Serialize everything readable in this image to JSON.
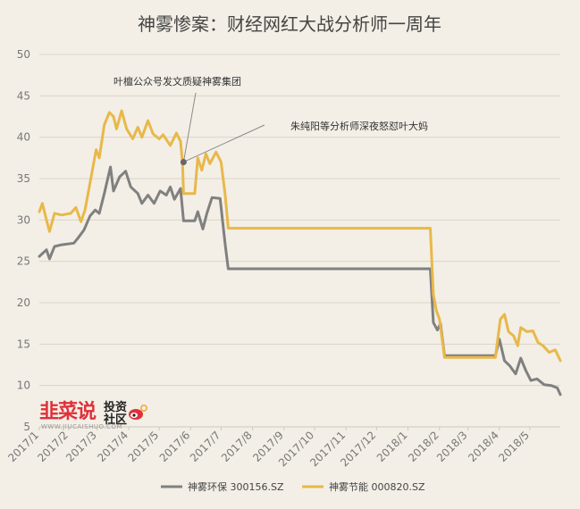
{
  "chart_data": {
    "type": "line",
    "title": "神雾惨案：财经网红大战分析师一周年",
    "xlabel": "",
    "ylabel": "",
    "ylim": [
      5,
      50
    ],
    "yticks": [
      5,
      10,
      15,
      20,
      25,
      30,
      35,
      40,
      45,
      50
    ],
    "xlim": [
      "2017-01-03",
      "2018-05-31"
    ],
    "xticks": [
      "2017/1",
      "2017/2",
      "2017/3",
      "2017/4",
      "2017/5",
      "2017/6",
      "2017/7",
      "2017/8",
      "2017/9",
      "2017/10",
      "2017/11",
      "2017/12",
      "2018/1",
      "2018/2",
      "2018/3",
      "2018/4",
      "2018/5"
    ],
    "xtick_dates": [
      "2017-01-03",
      "2017-02-01",
      "2017-03-01",
      "2017-04-01",
      "2017-05-01",
      "2017-06-01",
      "2017-07-01",
      "2017-08-01",
      "2017-09-01",
      "2017-10-01",
      "2017-11-01",
      "2017-12-01",
      "2018-01-01",
      "2018-02-01",
      "2018-03-01",
      "2018-04-01",
      "2018-05-01"
    ],
    "grid": "horizontal",
    "legend_position": "bottom",
    "series": [
      {
        "name": "神雾环保 300156.SZ",
        "color": "#808080",
        "points": [
          [
            "2017-01-03",
            25.6
          ],
          [
            "2017-01-10",
            26.4
          ],
          [
            "2017-01-13",
            25.3
          ],
          [
            "2017-01-18",
            26.8
          ],
          [
            "2017-01-25",
            27.0
          ],
          [
            "2017-02-06",
            27.2
          ],
          [
            "2017-02-10",
            27.8
          ],
          [
            "2017-02-16",
            28.8
          ],
          [
            "2017-02-22",
            30.5
          ],
          [
            "2017-02-27",
            31.2
          ],
          [
            "2017-03-03",
            30.8
          ],
          [
            "2017-03-08",
            33.2
          ],
          [
            "2017-03-14",
            36.4
          ],
          [
            "2017-03-17",
            33.5
          ],
          [
            "2017-03-23",
            35.2
          ],
          [
            "2017-03-29",
            35.9
          ],
          [
            "2017-04-03",
            34.0
          ],
          [
            "2017-04-10",
            33.2
          ],
          [
            "2017-04-14",
            32.0
          ],
          [
            "2017-04-20",
            33.0
          ],
          [
            "2017-04-26",
            32.0
          ],
          [
            "2017-05-02",
            33.5
          ],
          [
            "2017-05-08",
            33.0
          ],
          [
            "2017-05-12",
            34.0
          ],
          [
            "2017-05-16",
            32.5
          ],
          [
            "2017-05-22",
            33.8
          ],
          [
            "2017-05-25",
            29.9
          ],
          [
            "2017-06-05",
            29.9
          ],
          [
            "2017-06-08",
            31.0
          ],
          [
            "2017-06-13",
            28.9
          ],
          [
            "2017-06-17",
            30.8
          ],
          [
            "2017-06-22",
            32.7
          ],
          [
            "2017-06-30",
            32.6
          ],
          [
            "2017-07-05",
            27.0
          ],
          [
            "2017-07-08",
            24.1
          ],
          [
            "2018-01-23",
            24.1
          ],
          [
            "2018-01-26",
            17.6
          ],
          [
            "2018-01-30",
            16.7
          ],
          [
            "2018-02-02",
            17.5
          ],
          [
            "2018-02-06",
            13.6
          ],
          [
            "2018-03-28",
            13.6
          ],
          [
            "2018-04-01",
            15.6
          ],
          [
            "2018-04-06",
            13.0
          ],
          [
            "2018-04-11",
            12.4
          ],
          [
            "2018-04-17",
            11.4
          ],
          [
            "2018-04-22",
            13.3
          ],
          [
            "2018-04-27",
            11.8
          ],
          [
            "2018-05-02",
            10.6
          ],
          [
            "2018-05-08",
            10.8
          ],
          [
            "2018-05-15",
            10.1
          ],
          [
            "2018-05-22",
            10.0
          ],
          [
            "2018-05-28",
            9.7
          ],
          [
            "2018-05-31",
            8.9
          ]
        ]
      },
      {
        "name": "神雾节能 000820.SZ",
        "color": "#e8b84a",
        "points": [
          [
            "2017-01-03",
            31.0
          ],
          [
            "2017-01-06",
            32.0
          ],
          [
            "2017-01-10",
            30.0
          ],
          [
            "2017-01-13",
            28.6
          ],
          [
            "2017-01-18",
            30.8
          ],
          [
            "2017-01-25",
            30.6
          ],
          [
            "2017-02-03",
            30.8
          ],
          [
            "2017-02-08",
            31.5
          ],
          [
            "2017-02-13",
            29.8
          ],
          [
            "2017-02-17",
            31.2
          ],
          [
            "2017-02-22",
            34.5
          ],
          [
            "2017-02-28",
            38.5
          ],
          [
            "2017-03-03",
            37.5
          ],
          [
            "2017-03-08",
            41.5
          ],
          [
            "2017-03-13",
            43.0
          ],
          [
            "2017-03-17",
            42.5
          ],
          [
            "2017-03-20",
            41.0
          ],
          [
            "2017-03-25",
            43.2
          ],
          [
            "2017-03-30",
            41.0
          ],
          [
            "2017-04-05",
            39.8
          ],
          [
            "2017-04-10",
            41.2
          ],
          [
            "2017-04-14",
            40.0
          ],
          [
            "2017-04-20",
            42.0
          ],
          [
            "2017-04-25",
            40.4
          ],
          [
            "2017-05-01",
            39.8
          ],
          [
            "2017-05-05",
            40.3
          ],
          [
            "2017-05-12",
            39.0
          ],
          [
            "2017-05-18",
            40.5
          ],
          [
            "2017-05-22",
            39.5
          ],
          [
            "2017-05-24",
            37.0
          ],
          [
            "2017-05-25",
            33.2
          ],
          [
            "2017-06-05",
            33.2
          ],
          [
            "2017-06-08",
            37.5
          ],
          [
            "2017-06-12",
            36.0
          ],
          [
            "2017-06-16",
            38.0
          ],
          [
            "2017-06-20",
            36.8
          ],
          [
            "2017-06-26",
            38.2
          ],
          [
            "2017-07-01",
            37.0
          ],
          [
            "2017-07-05",
            33.0
          ],
          [
            "2017-07-08",
            29.0
          ],
          [
            "2018-01-23",
            29.0
          ],
          [
            "2018-01-26",
            21.0
          ],
          [
            "2018-01-29",
            19.0
          ],
          [
            "2018-02-01",
            18.0
          ],
          [
            "2018-02-06",
            13.4
          ],
          [
            "2018-03-28",
            13.4
          ],
          [
            "2018-04-02",
            18.0
          ],
          [
            "2018-04-06",
            18.6
          ],
          [
            "2018-04-10",
            16.5
          ],
          [
            "2018-04-15",
            16.0
          ],
          [
            "2018-04-19",
            14.8
          ],
          [
            "2018-04-22",
            17.0
          ],
          [
            "2018-04-28",
            16.5
          ],
          [
            "2018-05-04",
            16.6
          ],
          [
            "2018-05-09",
            15.2
          ],
          [
            "2018-05-14",
            14.8
          ],
          [
            "2018-05-20",
            14.0
          ],
          [
            "2018-05-26",
            14.3
          ],
          [
            "2018-05-31",
            13.0
          ]
        ]
      }
    ],
    "annotations": [
      {
        "text": "叶檀公众号发文质疑神雾集团",
        "x": "2017-05-25",
        "y": 37.0
      },
      {
        "text": "朱纯阳等分析师深夜怒怼叶大妈",
        "x": "2017-05-25",
        "y": 37.0
      }
    ]
  },
  "watermark": {
    "brand": "韭菜说",
    "tagline_top": "投资",
    "tagline_bottom": "社区",
    "url": "WWW.JIUCAISHUO.COM"
  }
}
